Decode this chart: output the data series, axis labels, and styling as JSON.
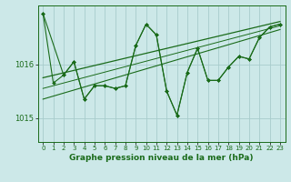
{
  "xlabel": "Graphe pression niveau de la mer (hPa)",
  "background_color": "#cce8e8",
  "grid_color": "#a8cccc",
  "line_color": "#1a6b1a",
  "marker_color": "#1a6b1a",
  "text_color": "#1a6b1a",
  "ytick_labels": [
    "1015",
    "1016"
  ],
  "ytick_vals": [
    1015.0,
    1016.0
  ],
  "ylim": [
    1014.55,
    1017.1
  ],
  "xlim": [
    -0.5,
    23.5
  ],
  "xticks": [
    0,
    1,
    2,
    3,
    4,
    5,
    6,
    7,
    8,
    9,
    10,
    11,
    12,
    13,
    14,
    15,
    16,
    17,
    18,
    19,
    20,
    21,
    22,
    23
  ],
  "series1_x": [
    0,
    1,
    2,
    3,
    4,
    5,
    6,
    7,
    8,
    9,
    10,
    11,
    12,
    13,
    14,
    15,
    16,
    17,
    18,
    19,
    20,
    21,
    22,
    23
  ],
  "series1_y": [
    1016.95,
    1015.65,
    1015.8,
    1016.05,
    1015.35,
    1015.6,
    1015.6,
    1015.55,
    1015.6,
    1016.35,
    1016.75,
    1016.55,
    1015.5,
    1015.05,
    1015.85,
    1016.3,
    1015.7,
    1015.7,
    1015.95,
    1016.15,
    1016.1,
    1016.5,
    1016.7,
    1016.75
  ],
  "series2_x": [
    0,
    2,
    3,
    4,
    5,
    6,
    7,
    8,
    9,
    10,
    11,
    12,
    13,
    14,
    15,
    16,
    17,
    18,
    19,
    20,
    21,
    22,
    23
  ],
  "series2_y": [
    1016.95,
    1015.8,
    1016.05,
    1015.35,
    1015.6,
    1015.6,
    1015.55,
    1015.6,
    1016.35,
    1016.75,
    1016.55,
    1015.5,
    1015.05,
    1015.85,
    1016.3,
    1015.7,
    1015.7,
    1015.95,
    1016.15,
    1016.1,
    1016.5,
    1016.7,
    1016.75
  ],
  "trend1_x": [
    0,
    23
  ],
  "trend1_y": [
    1015.75,
    1016.8
  ],
  "trend2_x": [
    0,
    23
  ],
  "trend2_y": [
    1015.35,
    1016.65
  ],
  "trend3_x": [
    0,
    23
  ],
  "trend3_y": [
    1015.55,
    1016.72
  ],
  "font_size_xlabel": 6.5,
  "font_size_tick_x": 5,
  "font_size_tick_y": 6
}
